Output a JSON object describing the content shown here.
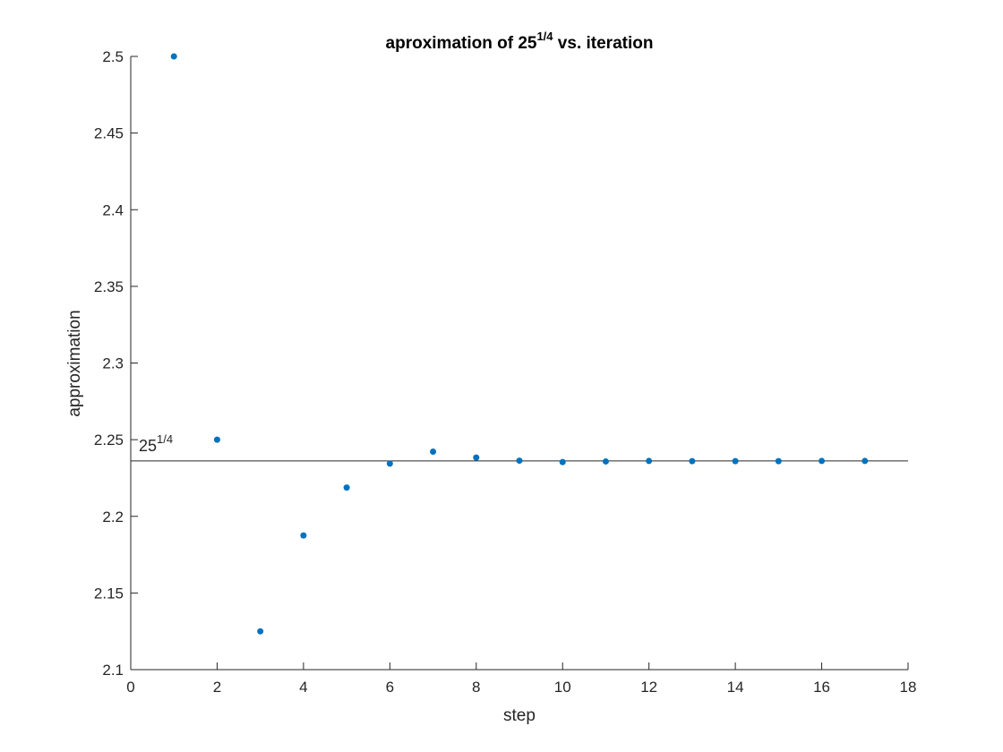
{
  "chart_data": {
    "type": "scatter",
    "title": {
      "prefix": "aproximation of 25",
      "superscript": "1/4",
      "suffix": " vs. iteration"
    },
    "xlabel": "step",
    "ylabel": "approximation",
    "xlim": [
      0,
      18
    ],
    "ylim": [
      2.1,
      2.5
    ],
    "x_ticks": [
      0,
      2,
      4,
      6,
      8,
      10,
      12,
      14,
      16,
      18
    ],
    "y_ticks": [
      2.1,
      2.15,
      2.2,
      2.25,
      2.3,
      2.35,
      2.4,
      2.45,
      2.5
    ],
    "x_tick_labels": [
      "0",
      "2",
      "4",
      "6",
      "8",
      "10",
      "12",
      "14",
      "16",
      "18"
    ],
    "y_tick_labels": [
      "2.1",
      "2.15",
      "2.2",
      "2.25",
      "2.3",
      "2.35",
      "2.4",
      "2.45",
      "2.5"
    ],
    "grid": false,
    "marker_color": "#0072BD",
    "reference_line": {
      "y": 2.2361,
      "label_base": "25",
      "label_superscript": "1/4",
      "color": "#262626"
    },
    "series": [
      {
        "x": [
          1,
          2,
          3,
          4,
          5,
          6,
          7,
          8,
          9,
          10,
          11,
          12,
          13,
          14,
          15,
          16,
          17
        ],
        "y": [
          2.5,
          2.25,
          2.125,
          2.1875,
          2.21875,
          2.2344,
          2.2422,
          2.2383,
          2.2363,
          2.2354,
          2.2358,
          2.2361,
          2.236,
          2.236,
          2.236,
          2.2361,
          2.2361
        ]
      }
    ]
  }
}
